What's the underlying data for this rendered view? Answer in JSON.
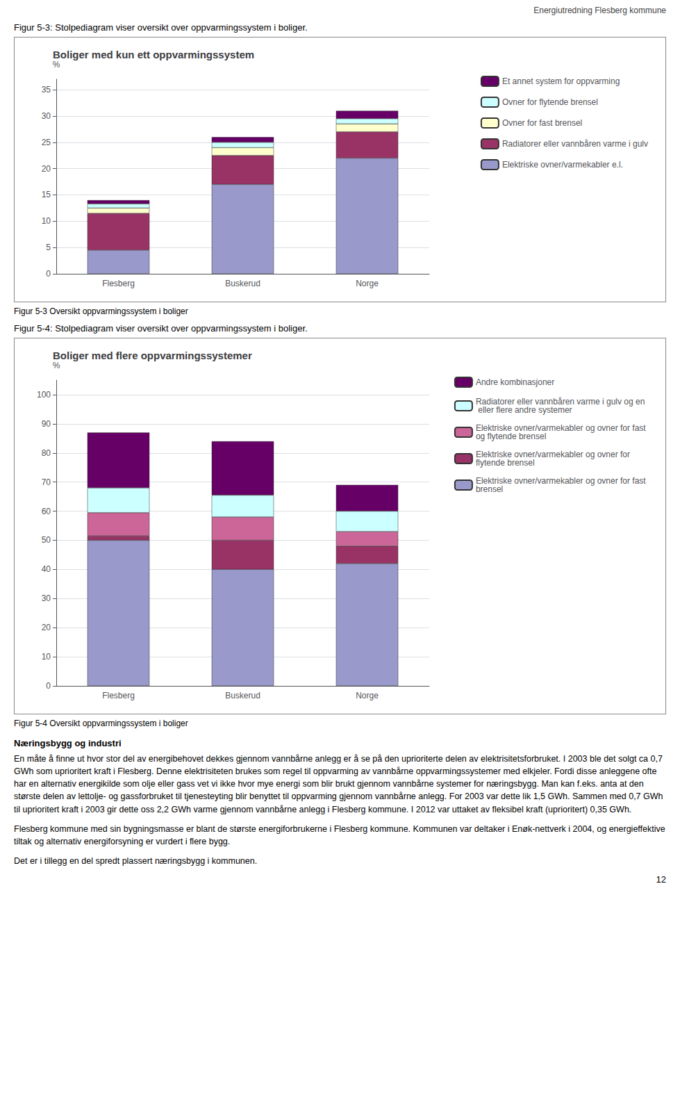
{
  "chart_data": [
    {
      "type": "bar",
      "stacked": true,
      "title": "Boliger med kun ett oppvarmingssystem",
      "categories": [
        "Flesberg",
        "Buskerud",
        "Norge"
      ],
      "ylabel": "%",
      "ylim": [
        0,
        37
      ],
      "yticks": [
        0,
        5,
        10,
        15,
        20,
        25,
        30,
        35
      ],
      "grid": true,
      "legend": "upper right",
      "series": [
        {
          "name": "Elektriske ovner/varmekabler e.l.",
          "color": "#9999CC",
          "values": [
            4.5,
            17.0,
            22.0
          ]
        },
        {
          "name": "Radiatorer eller vannbåren varme i gulv",
          "color": "#993366",
          "values": [
            7.0,
            5.5,
            5.0
          ]
        },
        {
          "name": "Ovner for fast brensel",
          "color": "#FFFFCC",
          "values": [
            1.0,
            1.5,
            1.5
          ]
        },
        {
          "name": "Ovner for flytende brensel",
          "color": "#CCFFFF",
          "values": [
            0.8,
            1.0,
            1.0
          ]
        },
        {
          "name": "Et annet system for oppvarming",
          "color": "#660066",
          "values": [
            0.7,
            1.0,
            1.5
          ]
        }
      ],
      "annotations": [
        "Energiutredning Flesberg kommune",
        "Figur 5-3: Stolpediagram viser oversikt over oppvarmingssystem i boliger.",
        "Figur 5-3 Oversikt oppvarmingssystem i boliger"
      ]
    },
    {
      "type": "bar",
      "stacked": true,
      "title": "Boliger med flere oppvarmingssystemer",
      "categories": [
        "Flesberg",
        "Buskerud",
        "Norge"
      ],
      "ylabel": "%",
      "ylim": [
        0,
        105
      ],
      "yticks": [
        0,
        10,
        20,
        30,
        40,
        50,
        60,
        70,
        80,
        90,
        100
      ],
      "grid": true,
      "legend": "upper right",
      "series": [
        {
          "name": "Elektriske ovner/varmekabler og ovner for fast brensel",
          "color": "#9999CC",
          "values": [
            50.0,
            40.0,
            42.0
          ]
        },
        {
          "name": "Elektriske ovner/varmekabler og ovner for flytende brensel",
          "color": "#993366",
          "values": [
            1.5,
            10.0,
            6.0
          ]
        },
        {
          "name": "Elektriske ovner/varmekabler og ovner for fast og flytende brensel",
          "color": "#CC6699",
          "values": [
            8.0,
            8.0,
            5.0
          ]
        },
        {
          "name": "Radiatorer eller vannbåren varme i gulv og en eller flere andre systemer",
          "color": "#CCFFFF",
          "values": [
            8.5,
            7.5,
            7.0
          ]
        },
        {
          "name": "Andre kombinasjoner",
          "color": "#660066",
          "values": [
            19.0,
            18.5,
            9.0
          ]
        }
      ],
      "annotations": [
        "Figur 5-4: Stolpediagram viser oversikt over oppvarmingssystem i boliger.",
        "Figur 5-4 Oversikt oppvarmingssystem i boliger",
        "Næringsbygg og industri",
        "En måte å finne ut hvor stor del av energibehovet dekkes gjennom vannbårne anlegg er å se på den uprioriterte delen av elektrisitetsforbruket. I 2003 ble det solgt ca 0,7 GWh som uprioritert kraft i Flesberg. Denne elektrisiteten brukes som regel til oppvarming av vannbårne oppvarmingssystemer med elkjeler. Fordi disse anleggene ofte har en alternativ energikilde som olje eller gass vet vi ikke hvor mye energi som blir brukt gjennom vannbårne systemer for næringsbygg. Man kan f.eks. anta at den største delen av lettolje- og gassforbruket til tjenesteyting blir benyttet til oppvarming gjennom vannbårne anlegg. For 2003 var dette lik 1,5 GWh. Sammen med 0,7 GWh til uprioritert kraft i 2003 gir dette oss 2,2 GWh varme gjennom vannbårne anlegg i Flesberg kommune. I 2012 var uttaket av fleksibel kraft (uprioritert) 0,35 GWh.",
        "Flesberg kommune med sin bygningsmasse er blant de største energiforbrukerne i Flesberg kommune. Kommunen var deltaker i Enøk-nettverk i 2004, og energieffektive tiltak og alternativ energiforsyning er vurdert i flere bygg.",
        "Det er i tillegg en del spredt plassert næringsbygg i kommunen.",
        "12"
      ]
    }
  ]
}
